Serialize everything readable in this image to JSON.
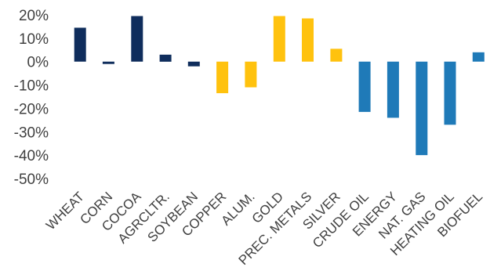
{
  "chart_data": {
    "type": "bar",
    "title": "",
    "xlabel": "",
    "ylabel": "",
    "ylim": [
      -50,
      20
    ],
    "yticks": [
      20,
      10,
      0,
      -10,
      -20,
      -30,
      -40,
      -50
    ],
    "ytick_format": "percent",
    "grid": false,
    "legend": "none",
    "categories": [
      "WHEAT",
      "CORN",
      "COCOA",
      "AGRCLTR.",
      "SOYBEAN",
      "COPPER",
      "ALUM.",
      "GOLD",
      "PREC. METALS",
      "SILVER",
      "CRUDE OIL",
      "ENERGY",
      "NAT. GAS",
      "HEATING OIL",
      "BIOFUEL"
    ],
    "values": [
      14.5,
      -0.8,
      19.5,
      3.0,
      -2.0,
      -13.5,
      -11.0,
      19.5,
      18.5,
      5.5,
      -21.5,
      -24.0,
      -40.0,
      -27.0,
      4.0
    ],
    "colors": [
      "#0f2d5c",
      "#0f2d5c",
      "#0f2d5c",
      "#0f2d5c",
      "#0f2d5c",
      "#ffc20e",
      "#ffc20e",
      "#ffc20e",
      "#ffc20e",
      "#ffc20e",
      "#1f7ab8",
      "#1f7ab8",
      "#1f7ab8",
      "#1f7ab8",
      "#1f7ab8"
    ]
  }
}
